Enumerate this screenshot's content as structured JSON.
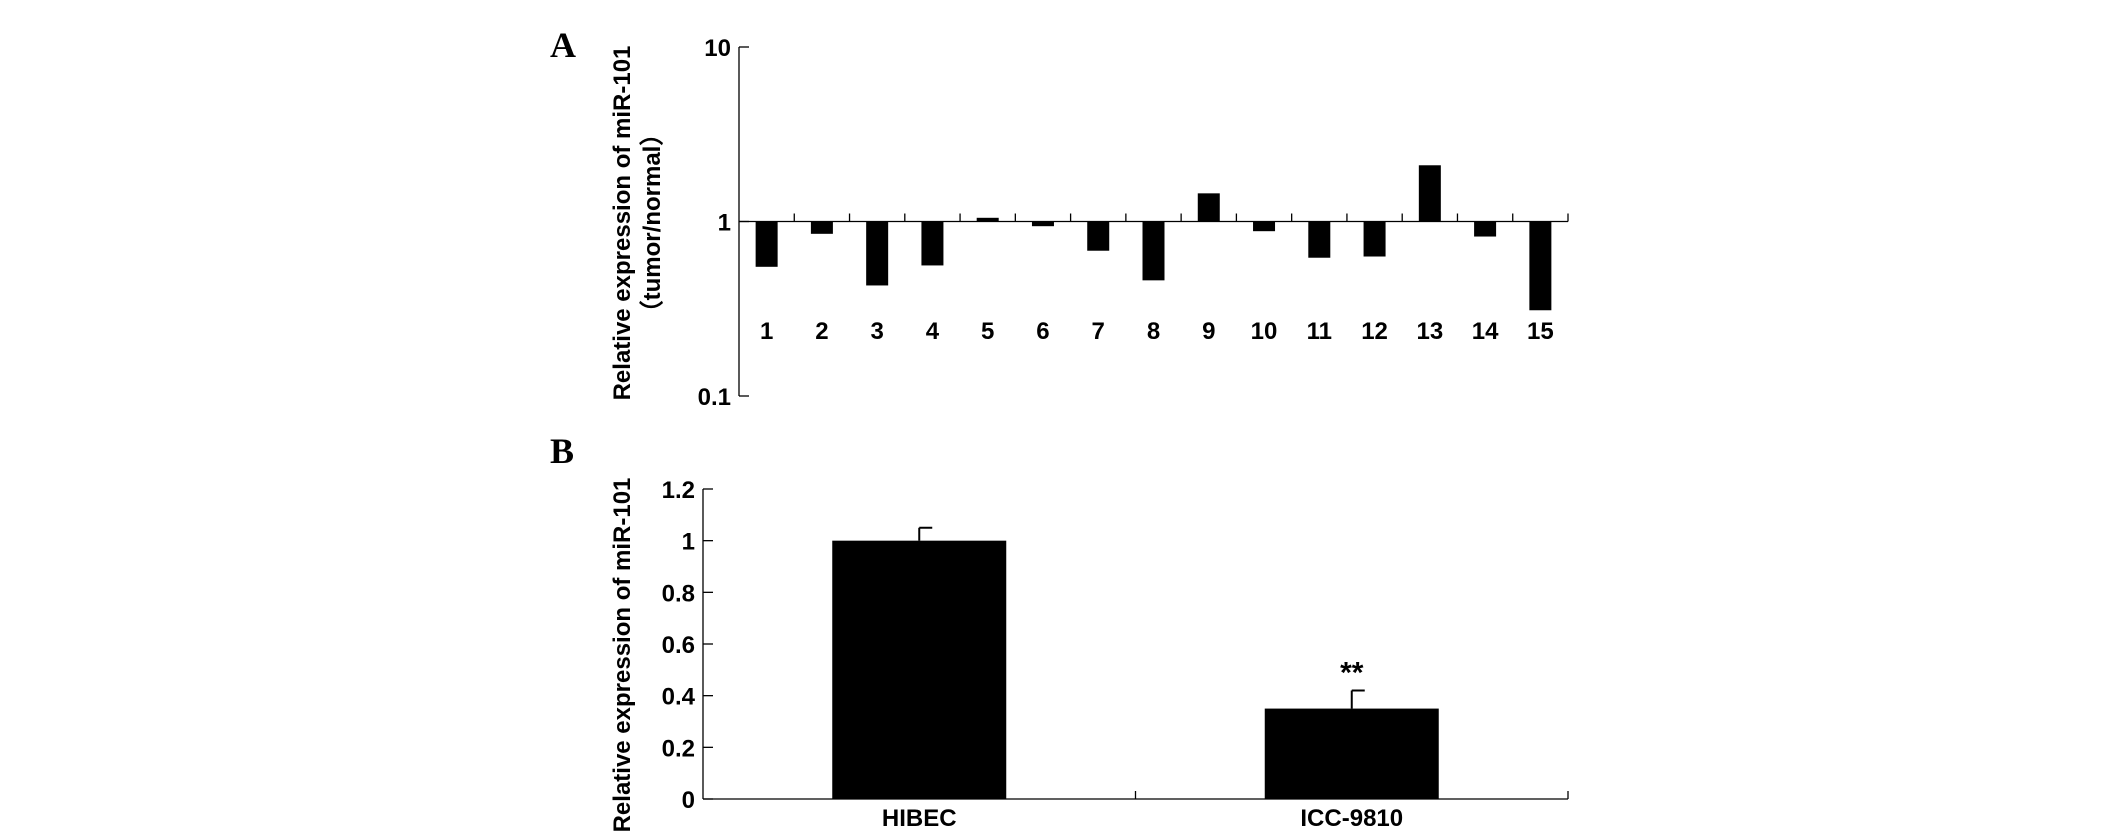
{
  "chart_data": [
    {
      "panel": "A",
      "type": "bar",
      "scale": "log",
      "ylabel_line1": "Relative expression of miR-101",
      "ylabel_line2": "（tumor/normal）",
      "yticks": [
        {
          "value": 10,
          "label": "10"
        },
        {
          "value": 1,
          "label": "1"
        },
        {
          "value": 0.1,
          "label": "0.1"
        }
      ],
      "ylim": [
        0.1,
        10
      ],
      "baseline": 1,
      "categories": [
        "1",
        "2",
        "3",
        "4",
        "5",
        "6",
        "7",
        "8",
        "9",
        "10",
        "11",
        "12",
        "13",
        "14",
        "15"
      ],
      "values": [
        0.55,
        0.85,
        0.43,
        0.56,
        1.05,
        0.94,
        0.68,
        0.46,
        1.45,
        0.88,
        0.62,
        0.63,
        2.1,
        0.82,
        0.31
      ]
    },
    {
      "panel": "B",
      "type": "bar",
      "ylabel": "Relative expression of miR-101",
      "yticks": [
        {
          "value": 1.2,
          "label": "1.2"
        },
        {
          "value": 1,
          "label": "1"
        },
        {
          "value": 0.8,
          "label": "0.8"
        },
        {
          "value": 0.6,
          "label": "0.6"
        },
        {
          "value": 0.4,
          "label": "0.4"
        },
        {
          "value": 0.2,
          "label": "0.2"
        },
        {
          "value": 0,
          "label": "0"
        }
      ],
      "ylim": [
        0,
        1.2
      ],
      "categories": [
        "HIBEC",
        "ICC-9810"
      ],
      "values": [
        1.0,
        0.35
      ],
      "errors": [
        0.05,
        0.07
      ],
      "annotations": [
        "",
        "**"
      ]
    }
  ]
}
